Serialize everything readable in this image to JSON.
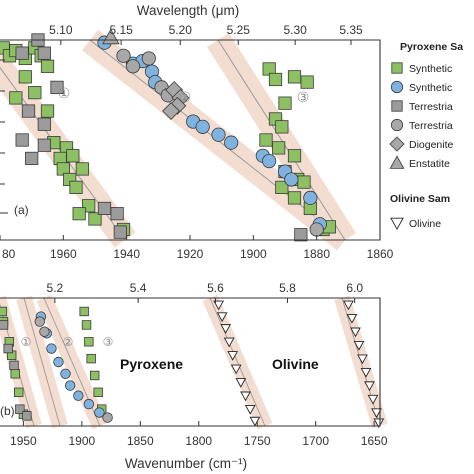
{
  "colors": {
    "band": "#f3ddd0",
    "trend": "#9a9a9a",
    "synthetic_pyx_square": "#8cc063",
    "synthetic_pyx_circle": "#7fb2df",
    "terrestrial_square": "#9b9b9b",
    "terrestrial_circle": "#a8a8a8",
    "diogenite": "#a8a8a8",
    "enstatite": "#a8a8a8",
    "olivine": "#ffffff"
  },
  "legend": {
    "pyroxene_header": "Pyroxene Sa",
    "items": [
      {
        "label": "Synthetic",
        "marker": "square",
        "color": "#8cc063"
      },
      {
        "label": "Synthetic",
        "marker": "circle",
        "color": "#7fb2df"
      },
      {
        "label": "Terrestria",
        "marker": "square",
        "color": "#9b9b9b"
      },
      {
        "label": "Terrestria",
        "marker": "circle",
        "color": "#a8a8a8"
      },
      {
        "label": "Diogenite",
        "marker": "diamond",
        "color": "#a8a8a8"
      },
      {
        "label": "Enstatite",
        "marker": "triangle",
        "color": "#a8a8a8"
      }
    ],
    "olivine_header": "Olivine Sam",
    "olivine_items": [
      {
        "label": "Olivine",
        "marker": "triangle-down",
        "color": "#ffffff"
      }
    ]
  },
  "chart_data": [
    {
      "type": "scatter",
      "panel_label": "(a)",
      "xlabel": "",
      "top_xlabel": "Wavelength (μm)",
      "x_range_wavenumber": [
        1980,
        1860
      ],
      "xticks": [
        "80",
        "1960",
        "1940",
        "1920",
        "1900",
        "1880",
        "1860"
      ],
      "top_xticks": [
        "5.10",
        "5.15",
        "5.20",
        "5.25",
        "5.30",
        "5.35"
      ],
      "annotations": [
        "①",
        "②",
        "③"
      ],
      "y_range": [
        0,
        7.6
      ],
      "groups": [
        {
          "name": "Synthetic",
          "marker": "square",
          "color": "#8cc063",
          "points": [
            [
              1979,
              7.3
            ],
            [
              1977,
              7.0
            ],
            [
              1975,
              7.2
            ],
            [
              1972,
              6.9
            ],
            [
              1969,
              7.3
            ],
            [
              1967,
              7.0
            ],
            [
              1965,
              6.6
            ],
            [
              1972,
              6.2
            ],
            [
              1975,
              5.4
            ],
            [
              1969,
              5.6
            ],
            [
              1965,
              4.9
            ],
            [
              1963,
              3.7
            ],
            [
              1959,
              3.5
            ],
            [
              1961,
              3.1
            ],
            [
              1957,
              3.2
            ],
            [
              1960,
              2.7
            ],
            [
              1954,
              2.7
            ],
            [
              1958,
              2.3
            ],
            [
              1956,
              2.0
            ],
            [
              1952,
              1.3
            ],
            [
              1955,
              1.0
            ],
            [
              1950,
              0.8
            ],
            [
              1941,
              0.4
            ],
            [
              1895,
              6.5
            ],
            [
              1893,
              6.1
            ],
            [
              1887,
              6.2
            ],
            [
              1883,
              6.0
            ],
            [
              1890,
              5.2
            ],
            [
              1893,
              4.6
            ],
            [
              1891,
              4.3
            ],
            [
              1896,
              3.8
            ],
            [
              1892,
              3.5
            ],
            [
              1887,
              3.2
            ],
            [
              1890,
              2.6
            ],
            [
              1886,
              2.3
            ],
            [
              1884,
              2.2
            ],
            [
              1891,
              2.0
            ],
            [
              1887,
              1.6
            ],
            [
              1882,
              1.2
            ],
            [
              1878,
              0.4
            ],
            [
              1876,
              0.5
            ]
          ]
        },
        {
          "name": "Synthetic",
          "marker": "circle",
          "color": "#7fb2df",
          "points": [
            [
              1947,
              7.5
            ],
            [
              1938,
              6.7
            ],
            [
              1935,
              6.8
            ],
            [
              1932,
              6.4
            ],
            [
              1931,
              6.0
            ],
            [
              1919,
              4.5
            ],
            [
              1916,
              4.3
            ],
            [
              1911,
              4.0
            ],
            [
              1907,
              3.7
            ],
            [
              1897,
              3.2
            ],
            [
              1895,
              3.0
            ],
            [
              1890,
              2.6
            ],
            [
              1888,
              2.3
            ],
            [
              1882,
              1.6
            ],
            [
              1879,
              0.6
            ]
          ]
        },
        {
          "name": "Terrestria",
          "marker": "square",
          "color": "#9b9b9b",
          "points": [
            [
              1973,
              7.1
            ],
            [
              1968,
              7.6
            ],
            [
              1966,
              7.1
            ],
            [
              1962,
              5.8
            ],
            [
              1971,
              4.9
            ],
            [
              1966,
              4.4
            ],
            [
              1973,
              3.8
            ],
            [
              1970,
              3.1
            ],
            [
              1966,
              3.6
            ],
            [
              1947,
              1.2
            ],
            [
              1943,
              1.0
            ],
            [
              1942,
              0.3
            ],
            [
              1885,
              0.2
            ]
          ]
        },
        {
          "name": "Terrestria",
          "marker": "circle",
          "color": "#a8a8a8",
          "points": [
            [
              1941,
              7.0
            ],
            [
              1938,
              6.6
            ],
            [
              1933,
              6.9
            ],
            [
              1929,
              5.8
            ],
            [
              1927,
              5.5
            ],
            [
              1880,
              0.4
            ]
          ]
        },
        {
          "name": "Diogenite",
          "marker": "diamond",
          "color": "#a8a8a8",
          "points": [
            [
              1925,
              5.7
            ],
            [
              1923,
              5.4
            ],
            [
              1924,
              5.1
            ],
            [
              1926,
              4.9
            ]
          ]
        },
        {
          "name": "Enstatite",
          "marker": "triangle",
          "color": "#a8a8a8",
          "points": [
            [
              1945,
              7.7
            ]
          ]
        }
      ]
    },
    {
      "type": "scatter",
      "panel_label": "(b)",
      "xlabel": "Wavenumber (cm⁻¹)",
      "top_xlabel": "",
      "x_range_wavenumber": [
        1970,
        1645
      ],
      "xticks": [
        "1950",
        "1900",
        "1850",
        "1800",
        "1750",
        "1700",
        "1650"
      ],
      "top_xticks": [
        "5.2",
        "5.4",
        "5.6",
        "5.8",
        "6.0"
      ],
      "annotations": [
        "①",
        "②",
        "③"
      ],
      "labels": [
        "Pyroxene",
        "Olivine"
      ],
      "y_range": [
        0,
        7.6
      ],
      "groups": [
        {
          "name": "Synthetic",
          "marker": "square",
          "color": "#8cc063",
          "points": [
            [
              1968,
              6.8
            ],
            [
              1967,
              6.2
            ],
            [
              1962,
              5.0
            ],
            [
              1960,
              4.2
            ],
            [
              1957,
              3.1
            ],
            [
              1954,
              2.0
            ],
            [
              1950,
              0.7
            ],
            [
              1898,
              6.8
            ],
            [
              1896,
              6.0
            ],
            [
              1894,
              5.0
            ],
            [
              1892,
              4.0
            ],
            [
              1889,
              3.0
            ],
            [
              1886,
              2.0
            ],
            [
              1883,
              1.0
            ]
          ]
        },
        {
          "name": "Synthetic",
          "marker": "circle",
          "color": "#7fb2df",
          "points": [
            [
              1935,
              6.5
            ],
            [
              1930,
              5.5
            ],
            [
              1926,
              4.6
            ],
            [
              1920,
              3.8
            ],
            [
              1914,
              3.1
            ],
            [
              1910,
              2.4
            ],
            [
              1903,
              1.8
            ],
            [
              1894,
              1.3
            ],
            [
              1885,
              0.8
            ]
          ]
        },
        {
          "name": "Terrestria",
          "marker": "square",
          "color": "#9b9b9b",
          "points": [
            [
              1967,
              6.0
            ],
            [
              1963,
              4.6
            ],
            [
              1958,
              3.6
            ],
            [
              1953,
              1.0
            ],
            [
              1947,
              0.6
            ]
          ]
        },
        {
          "name": "Terrestria",
          "marker": "circle",
          "color": "#a8a8a8",
          "points": [
            [
              1936,
              6.2
            ],
            [
              1932,
              5.6
            ],
            [
              1878,
              0.5
            ]
          ]
        },
        {
          "name": "Olivine",
          "marker": "triangle-down",
          "color": "#ffffff",
          "points": [
            [
              1783,
              7.2
            ],
            [
              1780,
              6.5
            ],
            [
              1777,
              5.8
            ],
            [
              1774,
              5.0
            ],
            [
              1771,
              4.2
            ],
            [
              1768,
              3.4
            ],
            [
              1764,
              2.6
            ],
            [
              1760,
              1.8
            ],
            [
              1756,
              1.0
            ],
            [
              1752,
              0.3
            ],
            [
              1672,
              7.2
            ],
            [
              1669,
              6.4
            ],
            [
              1666,
              5.6
            ],
            [
              1663,
              4.8
            ],
            [
              1660,
              4.0
            ],
            [
              1657,
              3.2
            ],
            [
              1654,
              2.4
            ],
            [
              1651,
              1.6
            ],
            [
              1648,
              0.8
            ],
            [
              1646,
              0.2
            ]
          ]
        }
      ]
    }
  ]
}
